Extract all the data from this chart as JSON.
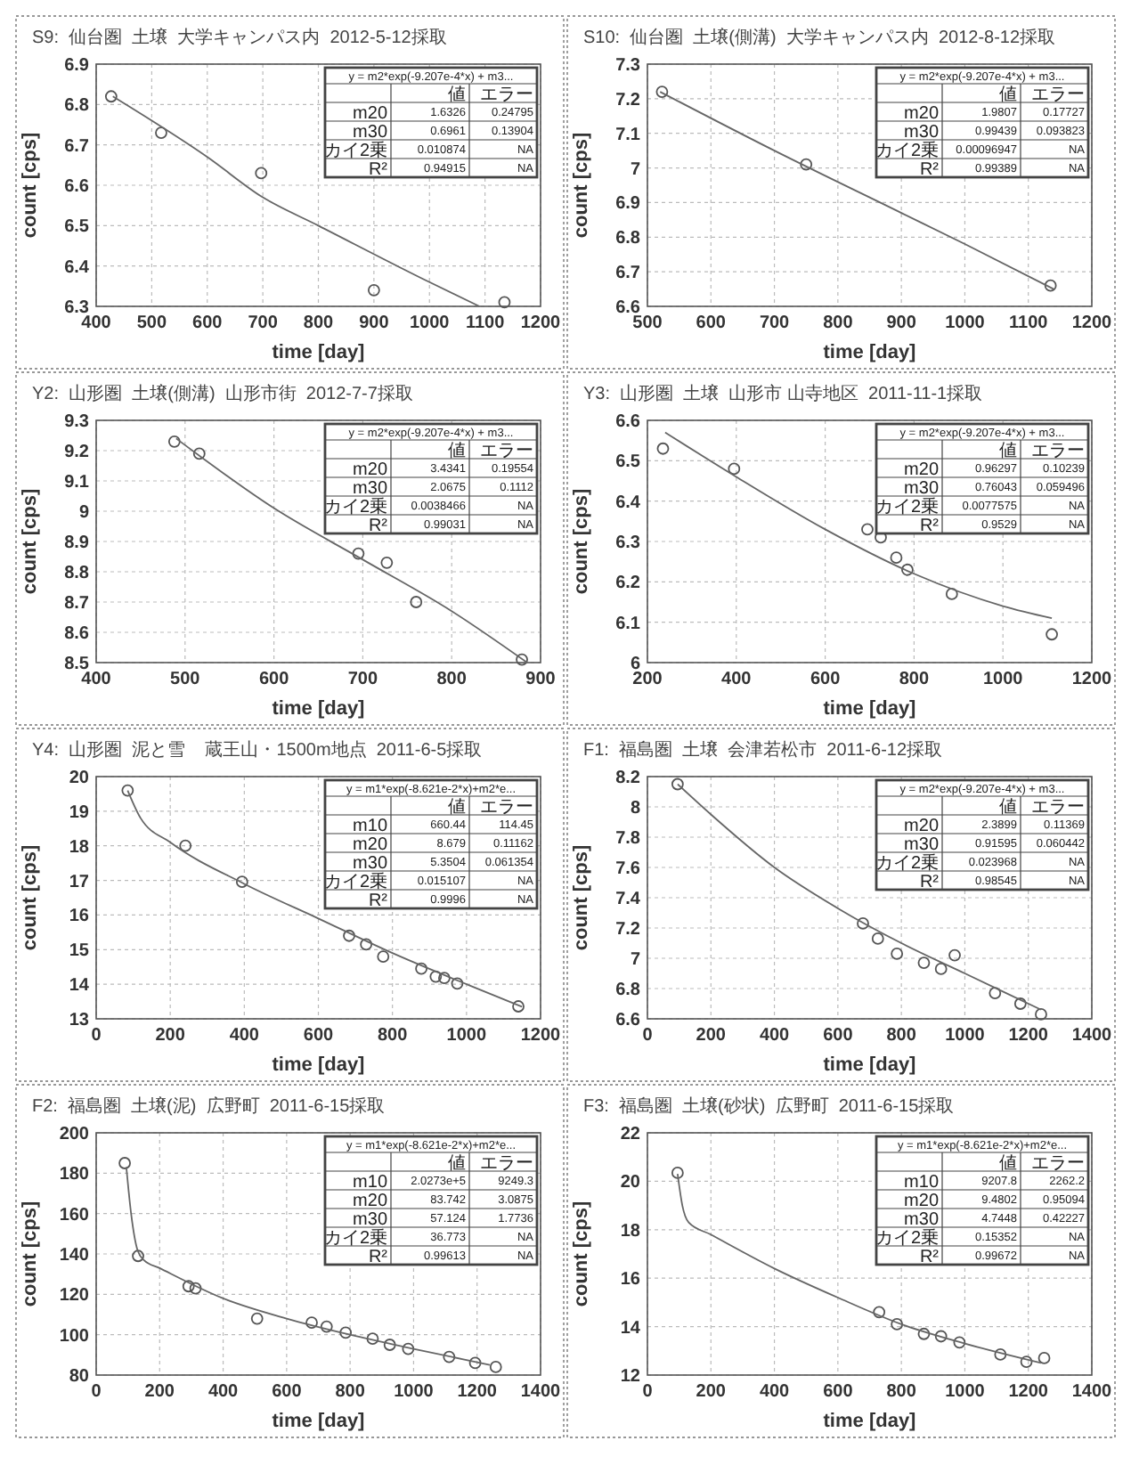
{
  "chart_data": [
    {
      "type": "scatter",
      "title": "S9:  仙台圏  土壌  大学キャンパス内  2012-5-12採取",
      "xlabel": "time [day]",
      "ylabel": "count [cps]",
      "xlim": [
        400,
        1200
      ],
      "ylim": [
        6.3,
        6.9
      ],
      "xticks": [
        400,
        500,
        600,
        700,
        800,
        900,
        1000,
        1100,
        1200
      ],
      "yticks": [
        6.3,
        6.4,
        6.5,
        6.6,
        6.7,
        6.8,
        6.9
      ],
      "grid": true,
      "annotations": [
        "y = m2*exp(-9.207e-4*x) + m3...",
        "\t値\tエラー",
        "m20\t1.6326\t0.24795",
        "m30\t0.6961\t0.13904",
        "カイ2乗\t0.010874\tNA",
        "R²\t0.94915\tNA"
      ],
      "series": [
        {
          "type": "scatter",
          "marker": "circle",
          "color": "#555555",
          "x": [
            427,
            517,
            697,
            900,
            1135
          ],
          "values": [
            6.82,
            6.73,
            6.63,
            6.34,
            6.31
          ]
        },
        {
          "type": "line",
          "marker": "none",
          "color": "#666666",
          "x": [
            430,
            600,
            700,
            800,
            1000,
            1090
          ],
          "values": [
            6.82,
            6.67,
            6.57,
            6.5,
            6.36,
            6.3
          ]
        }
      ]
    },
    {
      "type": "scatter",
      "title": "S10:  仙台圏  土壌(側溝)  大学キャンパス内  2012-8-12採取",
      "xlabel": "time [day]",
      "ylabel": "count [cps]",
      "xlim": [
        500,
        1200
      ],
      "ylim": [
        6.6,
        7.3
      ],
      "xticks": [
        500,
        600,
        700,
        800,
        900,
        1000,
        1100,
        1200
      ],
      "yticks": [
        6.6,
        6.7,
        6.8,
        6.9,
        7,
        7.1,
        7.2,
        7.3
      ],
      "grid": true,
      "annotations": [
        "y = m2*exp(-9.207e-4*x) + m3...",
        "\t値\tエラー",
        "m20\t1.9807\t0.17727",
        "m30\t0.99439\t0.093823",
        "カイ2乗\t0.00096947\tNA",
        "R²\t0.99389\tNA"
      ],
      "series": [
        {
          "type": "scatter",
          "marker": "circle",
          "color": "#555555",
          "x": [
            523,
            750,
            1135
          ],
          "values": [
            7.22,
            7.01,
            6.66
          ]
        },
        {
          "type": "line",
          "marker": "none",
          "color": "#666666",
          "x": [
            520,
            700,
            900,
            1000,
            1140
          ],
          "values": [
            7.22,
            7.05,
            6.87,
            6.78,
            6.65
          ]
        }
      ]
    },
    {
      "type": "scatter",
      "title": "Y2:  山形圏  土壌(側溝)  山形市街  2012-7-7採取",
      "xlabel": "time [day]",
      "ylabel": "count [cps]",
      "xlim": [
        400,
        900
      ],
      "ylim": [
        8.5,
        9.3
      ],
      "xticks": [
        400,
        500,
        600,
        700,
        800,
        900
      ],
      "yticks": [
        8.5,
        8.6,
        8.7,
        8.8,
        8.9,
        9,
        9.1,
        9.2,
        9.3
      ],
      "grid": true,
      "annotations": [
        "y = m2*exp(-9.207e-4*x) + m3...",
        "\t値\tエラー",
        "m20\t3.4341\t0.19554",
        "m30\t2.0675\t0.1112",
        "カイ2乗\t0.0038466\tNA",
        "R²\t0.99031\tNA"
      ],
      "series": [
        {
          "type": "scatter",
          "marker": "circle",
          "color": "#555555",
          "x": [
            488,
            516,
            695,
            727,
            760,
            879
          ],
          "values": [
            9.23,
            9.19,
            8.86,
            8.83,
            8.7,
            8.51
          ]
        },
        {
          "type": "line",
          "marker": "none",
          "color": "#666666",
          "x": [
            490,
            600,
            700,
            800,
            885
          ],
          "values": [
            9.24,
            9.01,
            8.84,
            8.67,
            8.5
          ]
        }
      ]
    },
    {
      "type": "scatter",
      "title": "Y3:  山形圏  土壌  山形市 山寺地区  2011-11-1採取",
      "xlabel": "time [day]",
      "ylabel": "count [cps]",
      "xlim": [
        200,
        1200
      ],
      "ylim": [
        6,
        6.6
      ],
      "xticks": [
        200,
        400,
        600,
        800,
        1000,
        1200
      ],
      "yticks": [
        6,
        6.1,
        6.2,
        6.3,
        6.4,
        6.5,
        6.6
      ],
      "grid": true,
      "annotations": [
        "y = m2*exp(-9.207e-4*x) + m3...",
        "\t値\tエラー",
        "m20\t0.96297\t0.10239",
        "m30\t0.76043\t0.059496",
        "カイ2乗\t0.0077575\tNA",
        "R²\t0.9529\tNA"
      ],
      "series": [
        {
          "type": "scatter",
          "marker": "circle",
          "color": "#555555",
          "x": [
            235,
            395,
            695,
            725,
            760,
            785,
            885,
            1110
          ],
          "values": [
            6.53,
            6.48,
            6.33,
            6.31,
            6.26,
            6.23,
            6.17,
            6.07
          ]
        },
        {
          "type": "line",
          "marker": "none",
          "color": "#666666",
          "x": [
            240,
            400,
            600,
            800,
            1000,
            1110
          ],
          "values": [
            6.57,
            6.46,
            6.33,
            6.22,
            6.14,
            6.11
          ]
        }
      ]
    },
    {
      "type": "scatter",
      "title": "Y4:  山形圏  泥と雪    蔵王山・1500m地点  2011-6-5採取",
      "xlabel": "time [day]",
      "ylabel": "count [cps]",
      "xlim": [
        0,
        1200
      ],
      "ylim": [
        13,
        20
      ],
      "xticks": [
        0,
        200,
        400,
        600,
        800,
        1000,
        1200
      ],
      "yticks": [
        13,
        14,
        15,
        16,
        17,
        18,
        19,
        20
      ],
      "grid": true,
      "annotations": [
        "y = m1*exp(-8.621e-2*x)+m2*e...",
        "\t値\tエラー",
        "m10\t660.44\t114.45",
        "m20\t8.679\t0.11162",
        "m30\t5.3504\t0.061354",
        "カイ2乗\t0.015107\tNA",
        "R²\t0.9996\tNA"
      ],
      "series": [
        {
          "type": "scatter",
          "marker": "circle",
          "color": "#555555",
          "x": [
            85,
            241,
            394,
            683,
            729,
            775,
            878,
            917,
            940,
            975,
            1140
          ],
          "values": [
            19.6,
            18,
            16.96,
            15.4,
            15.15,
            14.8,
            14.45,
            14.22,
            14.18,
            14.02,
            13.36
          ]
        },
        {
          "type": "line",
          "marker": "none",
          "color": "#666666",
          "x": [
            85,
            120,
            200,
            400,
            600,
            800,
            1000,
            1150
          ],
          "values": [
            19.6,
            18.8,
            18.1,
            16.9,
            15.9,
            14.9,
            14.0,
            13.35
          ]
        }
      ]
    },
    {
      "type": "scatter",
      "title": "F1:  福島圏  土壌  会津若松市  2011-6-12採取",
      "xlabel": "time [day]",
      "ylabel": "count [cps]",
      "xlim": [
        0,
        1400
      ],
      "ylim": [
        6.6,
        8.2
      ],
      "xticks": [
        0,
        200,
        400,
        600,
        800,
        1000,
        1200,
        1400
      ],
      "yticks": [
        6.6,
        6.8,
        7,
        7.2,
        7.4,
        7.6,
        7.8,
        8,
        8.2
      ],
      "grid": true,
      "annotations": [
        "y = m2*exp(-9.207e-4*x) + m3...",
        "\t値\tエラー",
        "m20\t2.3899\t0.11369",
        "m30\t0.91595\t0.060442",
        "カイ2乗\t0.023968\tNA",
        "R²\t0.98545\tNA"
      ],
      "series": [
        {
          "type": "scatter",
          "marker": "circle",
          "color": "#555555",
          "x": [
            95,
            679,
            726,
            786,
            871,
            925,
            968,
            1095,
            1175,
            1240
          ],
          "values": [
            8.15,
            7.23,
            7.13,
            7.03,
            6.97,
            6.93,
            7.02,
            6.77,
            6.7,
            6.63
          ]
        },
        {
          "type": "line",
          "marker": "none",
          "color": "#666666",
          "x": [
            95,
            200,
            400,
            600,
            800,
            1000,
            1240
          ],
          "values": [
            8.15,
            7.95,
            7.6,
            7.33,
            7.1,
            6.9,
            6.66
          ]
        }
      ]
    },
    {
      "type": "scatter",
      "title": "F2:  福島圏  土壌(泥)  広野町  2011-6-15採取",
      "xlabel": "time [day]",
      "ylabel": "count [cps]",
      "xlim": [
        0,
        1400
      ],
      "ylim": [
        80,
        200
      ],
      "xticks": [
        0,
        200,
        400,
        600,
        800,
        1000,
        1200,
        1400
      ],
      "yticks": [
        80,
        100,
        120,
        140,
        160,
        180,
        200
      ],
      "grid": true,
      "annotations": [
        "y = m1*exp(-8.621e-2*x)+m2*e...",
        "\t値\tエラー",
        "m10\t2.0273e+5\t9249.3",
        "m20\t83.742\t3.0875",
        "m30\t57.124\t1.7736",
        "カイ2乗\t36.773\tNA",
        "R²\t0.99613\tNA"
      ],
      "series": [
        {
          "type": "scatter",
          "marker": "circle",
          "color": "#555555",
          "x": [
            90,
            132,
            291,
            313,
            507,
            679,
            726,
            786,
            871,
            925,
            983,
            1112,
            1194,
            1259
          ],
          "values": [
            185,
            139,
            124,
            123,
            108,
            106,
            104,
            101,
            98,
            95,
            93,
            89,
            86,
            84
          ]
        },
        {
          "type": "line",
          "marker": "none",
          "color": "#666666",
          "x": [
            95,
            110,
            130,
            150,
            200,
            400,
            600,
            800,
            1000,
            1240
          ],
          "values": [
            183,
            160,
            142,
            137,
            133,
            118,
            108,
            100,
            93,
            85
          ]
        }
      ]
    },
    {
      "type": "scatter",
      "title": "F3:  福島圏  土壌(砂状)  広野町  2011-6-15採取",
      "xlabel": "time [day]",
      "ylabel": "count [cps]",
      "xlim": [
        0,
        1400
      ],
      "ylim": [
        12,
        22
      ],
      "xticks": [
        0,
        200,
        400,
        600,
        800,
        1000,
        1200,
        1400
      ],
      "yticks": [
        12,
        14,
        16,
        18,
        20,
        22
      ],
      "grid": true,
      "annotations": [
        "y = m1*exp(-8.621e-2*x)+m2*e...",
        "\t値\tエラー",
        "m10\t9207.8\t2262.2",
        "m20\t9.4802\t0.95094",
        "m30\t4.7448\t0.42227",
        "カイ2乗\t0.15352\tNA",
        "R²\t0.99672\tNA"
      ],
      "series": [
        {
          "type": "scatter",
          "marker": "circle",
          "color": "#555555",
          "x": [
            95,
            730,
            786,
            871,
            925,
            983,
            1112,
            1194,
            1250
          ],
          "values": [
            20.35,
            14.6,
            14.1,
            13.7,
            13.6,
            13.35,
            12.85,
            12.55,
            12.7
          ]
        },
        {
          "type": "line",
          "marker": "none",
          "color": "#666666",
          "x": [
            95,
            110,
            130,
            200,
            400,
            600,
            800,
            1000,
            1240
          ],
          "values": [
            20.3,
            19,
            18.3,
            17.8,
            16.4,
            15.2,
            14.1,
            13.3,
            12.5
          ]
        }
      ]
    }
  ]
}
